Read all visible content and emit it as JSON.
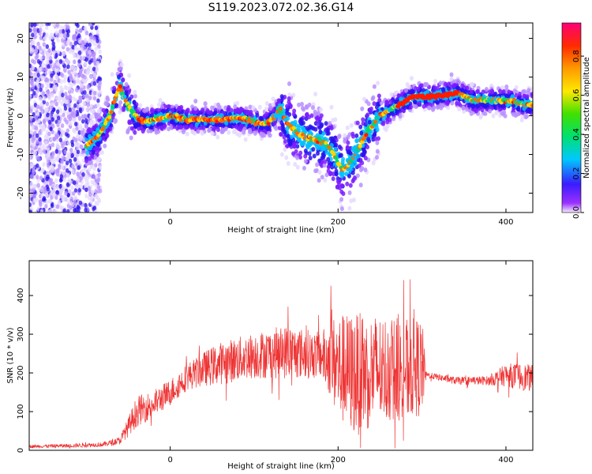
{
  "title": "S119.2023.072.02.36.G14",
  "chart_data": [
    {
      "type": "heatmap",
      "xlabel": "Height of straight line (km)",
      "ylabel": "Frequency (Hz)",
      "xlim": [
        -168,
        432
      ],
      "ylim": [
        -25,
        24
      ],
      "xticks": [
        0,
        200,
        400
      ],
      "yticks": [
        -20,
        -10,
        0,
        10,
        20
      ],
      "colorbar": {
        "label": "Normalized spectral amplitude",
        "ticks": [
          0.0,
          0.2,
          0.4,
          0.6,
          0.8
        ],
        "range": [
          0,
          0.97
        ],
        "colormap": "rainbow (violet-blue-cyan-green-yellow-orange-red-magenta)"
      },
      "ridge": {
        "x": [
          -100,
          -85,
          -72,
          -60,
          -52,
          -45,
          -38,
          -30,
          -10,
          0,
          20,
          40,
          60,
          80,
          100,
          115,
          125,
          130,
          140,
          155,
          170,
          185,
          195,
          205,
          215,
          225,
          235,
          250,
          270,
          290,
          310,
          330,
          340,
          360,
          380,
          400,
          420,
          432
        ],
        "y": [
          -8,
          -5,
          0,
          8,
          3,
          1,
          -1,
          -1.5,
          -0.5,
          0,
          -1,
          -1,
          -1,
          -0.5,
          -1.5,
          -2,
          0,
          2,
          -2,
          -5,
          -6,
          -7,
          -10,
          -14,
          -12,
          -8,
          -4,
          0,
          2.5,
          5,
          5,
          5.5,
          6,
          4,
          4,
          4,
          3,
          3
        ]
      }
    },
    {
      "type": "line",
      "xlabel": "Height of straight line (km)",
      "ylabel": "SNR (10 * v/v)",
      "xlim": [
        -168,
        432
      ],
      "ylim": [
        0,
        490
      ],
      "xticks": [
        0,
        200,
        400
      ],
      "yticks": [
        0,
        100,
        200,
        300,
        400
      ],
      "color": "#ee3333",
      "envelope": {
        "x": [
          -168,
          -120,
          -80,
          -60,
          -50,
          -40,
          -20,
          0,
          20,
          40,
          60,
          100,
          140,
          180,
          190,
          200,
          220,
          240,
          260,
          280,
          300,
          305,
          340,
          380,
          400,
          420,
          432
        ],
        "mean": [
          10,
          12,
          15,
          25,
          60,
          100,
          120,
          150,
          190,
          210,
          225,
          245,
          255,
          245,
          240,
          215,
          195,
          205,
          210,
          210,
          215,
          195,
          180,
          180,
          195,
          190,
          185
        ],
        "amp": [
          4,
          5,
          6,
          10,
          25,
          40,
          35,
          35,
          35,
          45,
          55,
          60,
          70,
          60,
          100,
          140,
          160,
          150,
          140,
          130,
          130,
          8,
          10,
          12,
          30,
          35,
          35
        ]
      }
    }
  ]
}
